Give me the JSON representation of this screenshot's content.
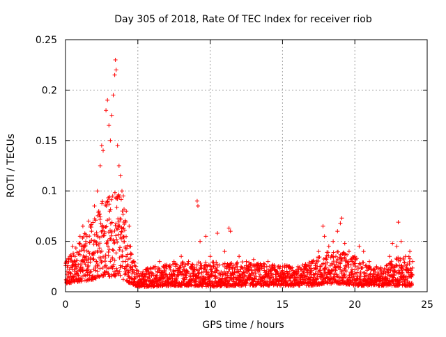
{
  "chart_data": {
    "type": "scatter",
    "title": "Day 305 of 2018, Rate Of TEC Index for receiver riob",
    "xlabel": "GPS time / hours",
    "ylabel": "ROTI / TECUs",
    "xlim": [
      0,
      25
    ],
    "ylim": [
      0,
      0.25
    ],
    "x_ticks": [
      0,
      5,
      10,
      15,
      20,
      25
    ],
    "x_tick_labels": [
      "0",
      "5",
      "10",
      "15",
      "20",
      "25"
    ],
    "y_ticks": [
      0,
      0.05,
      0.1,
      0.15,
      0.2,
      0.25
    ],
    "y_tick_labels": [
      "0",
      "0.05",
      "0.1",
      "0.15",
      "0.2",
      "0.25"
    ],
    "grid": true,
    "marker": "+",
    "marker_color": "#ff0000",
    "series": [
      {
        "name": "ROTI",
        "points": [
          [
            0.1,
            0.02
          ],
          [
            0.3,
            0.035
          ],
          [
            0.5,
            0.045
          ],
          [
            0.6,
            0.03
          ],
          [
            0.8,
            0.025
          ],
          [
            1.0,
            0.055
          ],
          [
            1.2,
            0.065
          ],
          [
            1.4,
            0.05
          ],
          [
            1.6,
            0.07
          ],
          [
            1.8,
            0.06
          ],
          [
            2.0,
            0.085
          ],
          [
            2.2,
            0.1
          ],
          [
            2.4,
            0.125
          ],
          [
            2.5,
            0.145
          ],
          [
            2.6,
            0.14
          ],
          [
            2.8,
            0.18
          ],
          [
            2.9,
            0.19
          ],
          [
            3.0,
            0.165
          ],
          [
            3.1,
            0.15
          ],
          [
            3.2,
            0.175
          ],
          [
            3.3,
            0.195
          ],
          [
            3.4,
            0.215
          ],
          [
            3.45,
            0.23
          ],
          [
            3.5,
            0.22
          ],
          [
            3.6,
            0.145
          ],
          [
            3.7,
            0.125
          ],
          [
            3.8,
            0.115
          ],
          [
            3.9,
            0.1
          ],
          [
            4.0,
            0.095
          ],
          [
            4.2,
            0.08
          ],
          [
            4.4,
            0.065
          ],
          [
            4.5,
            0.045
          ],
          [
            4.7,
            0.03
          ],
          [
            5.0,
            0.015
          ],
          [
            5.5,
            0.012
          ],
          [
            6.0,
            0.018
          ],
          [
            6.5,
            0.03
          ],
          [
            7.0,
            0.025
          ],
          [
            7.5,
            0.03
          ],
          [
            8.0,
            0.035
          ],
          [
            8.5,
            0.03
          ],
          [
            9.1,
            0.09
          ],
          [
            9.15,
            0.085
          ],
          [
            9.3,
            0.05
          ],
          [
            9.7,
            0.055
          ],
          [
            10.0,
            0.035
          ],
          [
            10.5,
            0.058
          ],
          [
            11.0,
            0.04
          ],
          [
            11.3,
            0.063
          ],
          [
            11.4,
            0.06
          ],
          [
            12.0,
            0.035
          ],
          [
            12.5,
            0.03
          ],
          [
            13.0,
            0.032
          ],
          [
            13.5,
            0.025
          ],
          [
            14.0,
            0.03
          ],
          [
            14.5,
            0.022
          ],
          [
            15.0,
            0.025
          ],
          [
            15.5,
            0.02
          ],
          [
            16.0,
            0.022
          ],
          [
            16.5,
            0.025
          ],
          [
            17.0,
            0.03
          ],
          [
            17.5,
            0.04
          ],
          [
            17.8,
            0.065
          ],
          [
            17.9,
            0.055
          ],
          [
            18.2,
            0.045
          ],
          [
            18.5,
            0.05
          ],
          [
            18.8,
            0.06
          ],
          [
            19.0,
            0.068
          ],
          [
            19.1,
            0.073
          ],
          [
            19.3,
            0.048
          ],
          [
            19.6,
            0.04
          ],
          [
            20.0,
            0.035
          ],
          [
            20.3,
            0.045
          ],
          [
            20.6,
            0.04
          ],
          [
            21.0,
            0.03
          ],
          [
            21.5,
            0.025
          ],
          [
            22.0,
            0.02
          ],
          [
            22.4,
            0.035
          ],
          [
            22.6,
            0.048
          ],
          [
            22.9,
            0.045
          ],
          [
            23.0,
            0.069
          ],
          [
            23.2,
            0.05
          ],
          [
            23.5,
            0.035
          ],
          [
            23.8,
            0.04
          ],
          [
            24.0,
            0.03
          ]
        ]
      }
    ],
    "band": {
      "description": "dense point cloud",
      "x": [
        0,
        1,
        2,
        2.5,
        3,
        3.5,
        4,
        4.5,
        5,
        6,
        8,
        10,
        12,
        14,
        16,
        17,
        18,
        19,
        20,
        21,
        22,
        23,
        24
      ],
      "low": [
        0.008,
        0.01,
        0.012,
        0.015,
        0.015,
        0.015,
        0.012,
        0.008,
        0.005,
        0.005,
        0.006,
        0.005,
        0.006,
        0.006,
        0.006,
        0.006,
        0.008,
        0.008,
        0.006,
        0.006,
        0.006,
        0.006,
        0.006
      ],
      "high": [
        0.03,
        0.05,
        0.075,
        0.09,
        0.095,
        0.1,
        0.09,
        0.04,
        0.02,
        0.025,
        0.03,
        0.03,
        0.03,
        0.028,
        0.025,
        0.03,
        0.04,
        0.04,
        0.035,
        0.025,
        0.025,
        0.035,
        0.035
      ]
    }
  }
}
